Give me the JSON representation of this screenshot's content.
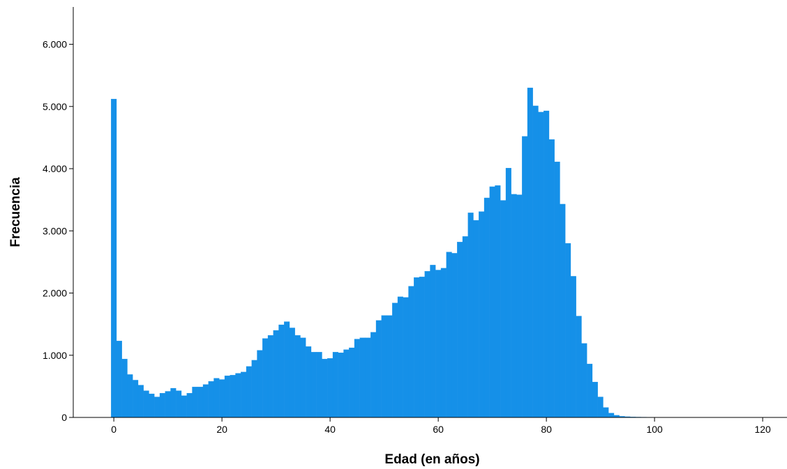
{
  "chart_data": {
    "type": "bar",
    "title": "",
    "xlabel": "Edad (en años)",
    "ylabel": "Frecuencia",
    "xlim": [
      -7,
      125
    ],
    "ylim": [
      0,
      6600
    ],
    "grid": false,
    "legend": "none",
    "bar_color": "#1590e8",
    "bin_width": 1,
    "x_ticks": [
      0,
      20,
      40,
      60,
      80,
      100,
      120
    ],
    "x_tick_labels": [
      "0",
      "20",
      "40",
      "60",
      "80",
      "100",
      "120"
    ],
    "y_ticks": [
      0,
      1000,
      2000,
      3000,
      4000,
      5000,
      6000
    ],
    "y_tick_labels": [
      "0",
      "1.000",
      "2.000",
      "3.000",
      "4.000",
      "5.000",
      "6.000"
    ],
    "x": [
      0,
      1,
      2,
      3,
      4,
      5,
      6,
      7,
      8,
      9,
      10,
      11,
      12,
      13,
      14,
      15,
      16,
      17,
      18,
      19,
      20,
      21,
      22,
      23,
      24,
      25,
      26,
      27,
      28,
      29,
      30,
      31,
      32,
      33,
      34,
      35,
      36,
      37,
      38,
      39,
      40,
      41,
      42,
      43,
      44,
      45,
      46,
      47,
      48,
      49,
      50,
      51,
      52,
      53,
      54,
      55,
      56,
      57,
      58,
      59,
      60,
      61,
      62,
      63,
      64,
      65,
      66,
      67,
      68,
      69,
      70,
      71,
      72,
      73,
      74,
      75,
      76,
      77,
      78,
      79,
      80,
      81,
      82,
      83,
      84,
      85,
      86,
      87,
      88,
      89,
      90,
      91,
      92,
      93,
      94,
      95,
      96,
      97,
      98,
      99,
      100,
      101,
      102,
      103,
      104,
      105,
      106,
      107,
      108,
      109,
      110,
      111,
      112,
      113,
      114,
      115,
      116,
      117
    ],
    "values": [
      5120,
      1230,
      940,
      690,
      600,
      520,
      430,
      380,
      330,
      390,
      420,
      470,
      430,
      350,
      390,
      490,
      490,
      530,
      580,
      630,
      610,
      670,
      680,
      710,
      730,
      820,
      920,
      1080,
      1270,
      1320,
      1400,
      1490,
      1540,
      1440,
      1320,
      1280,
      1140,
      1050,
      1050,
      940,
      950,
      1050,
      1040,
      1090,
      1120,
      1260,
      1280,
      1280,
      1370,
      1560,
      1640,
      1640,
      1840,
      1940,
      1930,
      2110,
      2250,
      2260,
      2350,
      2450,
      2370,
      2400,
      2660,
      2640,
      2820,
      2910,
      3290,
      3170,
      3310,
      3530,
      3710,
      3730,
      3490,
      4010,
      3590,
      3580,
      4520,
      5300,
      5010,
      4910,
      4930,
      4470,
      4110,
      3430,
      2800,
      2270,
      1630,
      1190,
      860,
      570,
      330,
      160,
      70,
      35,
      18,
      12,
      8,
      6,
      5,
      4,
      3,
      3,
      2,
      2,
      2,
      2,
      2,
      1,
      1,
      1,
      1,
      1,
      1,
      1,
      1,
      1,
      1,
      1
    ]
  }
}
